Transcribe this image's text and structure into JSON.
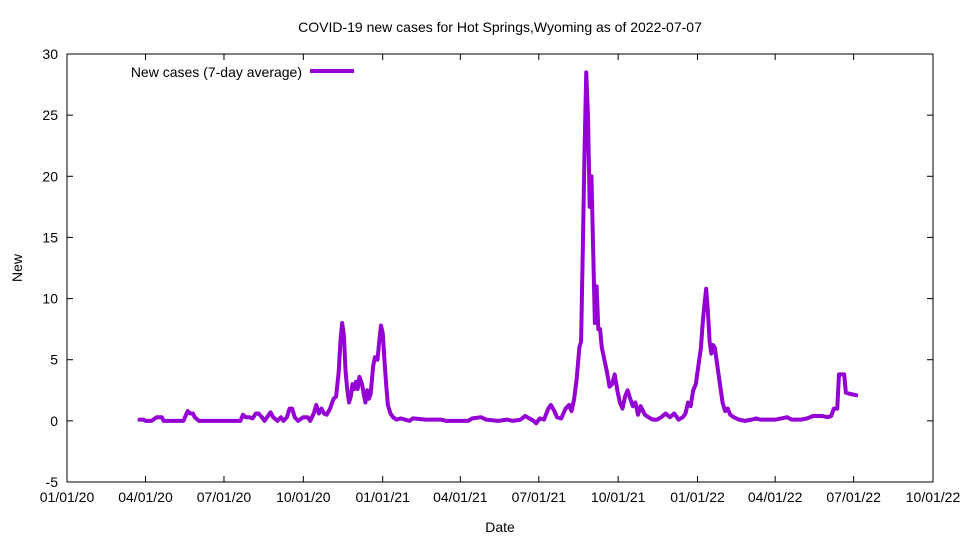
{
  "chart_data": {
    "type": "line",
    "title": "COVID-19 new cases for Hot Springs,Wyoming as of 2022-07-07",
    "xlabel": "Date",
    "ylabel": "New",
    "ylim": [
      -5,
      30
    ],
    "xlim": [
      "2020-01-01",
      "2022-10-01"
    ],
    "yticks": [
      "-5",
      "0",
      "5",
      "10",
      "15",
      "20",
      "25",
      "30"
    ],
    "xticks": [
      {
        "date": "2020-01-01",
        "label": "01/01/20"
      },
      {
        "date": "2020-04-01",
        "label": "04/01/20"
      },
      {
        "date": "2020-07-01",
        "label": "07/01/20"
      },
      {
        "date": "2020-10-01",
        "label": "10/01/20"
      },
      {
        "date": "2021-01-01",
        "label": "01/01/21"
      },
      {
        "date": "2021-04-01",
        "label": "04/01/21"
      },
      {
        "date": "2021-07-01",
        "label": "07/01/21"
      },
      {
        "date": "2021-10-01",
        "label": "10/01/21"
      },
      {
        "date": "2022-01-01",
        "label": "01/01/22"
      },
      {
        "date": "2022-04-01",
        "label": "04/01/22"
      },
      {
        "date": "2022-07-01",
        "label": "07/01/22"
      },
      {
        "date": "2022-10-01",
        "label": "10/01/22"
      }
    ],
    "grid": false,
    "legend_position": "top-left",
    "series": [
      {
        "name": "New cases (7-day average)",
        "color": "#9400d3",
        "points": [
          [
            "2020-03-25",
            0.1
          ],
          [
            "2020-03-30",
            0.1
          ],
          [
            "2020-04-01",
            0.0
          ],
          [
            "2020-04-08",
            0.0
          ],
          [
            "2020-04-10",
            0.1
          ],
          [
            "2020-04-14",
            0.3
          ],
          [
            "2020-04-20",
            0.3
          ],
          [
            "2020-04-22",
            0.0
          ],
          [
            "2020-05-10",
            0.0
          ],
          [
            "2020-05-15",
            0.0
          ],
          [
            "2020-05-18",
            0.5
          ],
          [
            "2020-05-20",
            0.8
          ],
          [
            "2020-05-23",
            0.6
          ],
          [
            "2020-05-26",
            0.6
          ],
          [
            "2020-05-28",
            0.3
          ],
          [
            "2020-06-02",
            0.0
          ],
          [
            "2020-06-20",
            0.0
          ],
          [
            "2020-07-15",
            0.0
          ],
          [
            "2020-07-20",
            0.0
          ],
          [
            "2020-07-23",
            0.5
          ],
          [
            "2020-07-26",
            0.3
          ],
          [
            "2020-07-30",
            0.3
          ],
          [
            "2020-08-03",
            0.2
          ],
          [
            "2020-08-07",
            0.6
          ],
          [
            "2020-08-10",
            0.6
          ],
          [
            "2020-08-14",
            0.3
          ],
          [
            "2020-08-17",
            0.0
          ],
          [
            "2020-08-20",
            0.3
          ],
          [
            "2020-08-24",
            0.7
          ],
          [
            "2020-08-27",
            0.3
          ],
          [
            "2020-09-01",
            0.0
          ],
          [
            "2020-09-05",
            0.3
          ],
          [
            "2020-09-08",
            0.0
          ],
          [
            "2020-09-12",
            0.3
          ],
          [
            "2020-09-15",
            1.0
          ],
          [
            "2020-09-18",
            1.0
          ],
          [
            "2020-09-21",
            0.3
          ],
          [
            "2020-09-25",
            0.0
          ],
          [
            "2020-10-01",
            0.3
          ],
          [
            "2020-10-06",
            0.3
          ],
          [
            "2020-10-09",
            0.0
          ],
          [
            "2020-10-13",
            0.6
          ],
          [
            "2020-10-16",
            1.3
          ],
          [
            "2020-10-19",
            0.6
          ],
          [
            "2020-10-22",
            1.0
          ],
          [
            "2020-10-25",
            0.6
          ],
          [
            "2020-10-28",
            0.5
          ],
          [
            "2020-11-01",
            1.0
          ],
          [
            "2020-11-05",
            1.8
          ],
          [
            "2020-11-08",
            2.0
          ],
          [
            "2020-11-11",
            4.0
          ],
          [
            "2020-11-13",
            6.5
          ],
          [
            "2020-11-15",
            8.0
          ],
          [
            "2020-11-17",
            7.0
          ],
          [
            "2020-11-19",
            4.0
          ],
          [
            "2020-11-21",
            2.5
          ],
          [
            "2020-11-23",
            1.5
          ],
          [
            "2020-11-25",
            2.0
          ],
          [
            "2020-11-27",
            3.0
          ],
          [
            "2020-11-29",
            2.6
          ],
          [
            "2020-12-01",
            3.2
          ],
          [
            "2020-12-03",
            2.6
          ],
          [
            "2020-12-05",
            3.6
          ],
          [
            "2020-12-08",
            3.0
          ],
          [
            "2020-12-10",
            2.2
          ],
          [
            "2020-12-12",
            1.5
          ],
          [
            "2020-12-14",
            2.5
          ],
          [
            "2020-12-16",
            1.8
          ],
          [
            "2020-12-18",
            2.2
          ],
          [
            "2020-12-21",
            4.5
          ],
          [
            "2020-12-23",
            5.2
          ],
          [
            "2020-12-26",
            5.0
          ],
          [
            "2020-12-28",
            6.5
          ],
          [
            "2020-12-30",
            7.8
          ],
          [
            "2021-01-01",
            7.2
          ],
          [
            "2021-01-03",
            5.0
          ],
          [
            "2021-01-05",
            3.0
          ],
          [
            "2021-01-07",
            1.3
          ],
          [
            "2021-01-10",
            0.6
          ],
          [
            "2021-01-13",
            0.3
          ],
          [
            "2021-01-17",
            0.1
          ],
          [
            "2021-01-22",
            0.2
          ],
          [
            "2021-02-01",
            0.0
          ],
          [
            "2021-02-05",
            0.2
          ],
          [
            "2021-02-20",
            0.1
          ],
          [
            "2021-03-10",
            0.1
          ],
          [
            "2021-03-15",
            0.0
          ],
          [
            "2021-04-01",
            0.0
          ],
          [
            "2021-04-10",
            0.0
          ],
          [
            "2021-04-15",
            0.2
          ],
          [
            "2021-04-25",
            0.3
          ],
          [
            "2021-05-01",
            0.1
          ],
          [
            "2021-05-15",
            0.0
          ],
          [
            "2021-05-25",
            0.1
          ],
          [
            "2021-06-01",
            0.0
          ],
          [
            "2021-06-10",
            0.1
          ],
          [
            "2021-06-15",
            0.4
          ],
          [
            "2021-06-20",
            0.2
          ],
          [
            "2021-06-25",
            0.0
          ],
          [
            "2021-06-28",
            -0.2
          ],
          [
            "2021-07-02",
            0.2
          ],
          [
            "2021-07-07",
            0.1
          ],
          [
            "2021-07-12",
            1.0
          ],
          [
            "2021-07-15",
            1.3
          ],
          [
            "2021-07-19",
            0.8
          ],
          [
            "2021-07-22",
            0.3
          ],
          [
            "2021-07-27",
            0.2
          ],
          [
            "2021-08-01",
            1.0
          ],
          [
            "2021-08-05",
            1.3
          ],
          [
            "2021-08-08",
            0.8
          ],
          [
            "2021-08-11",
            1.8
          ],
          [
            "2021-08-14",
            3.5
          ],
          [
            "2021-08-17",
            6.0
          ],
          [
            "2021-08-19",
            6.5
          ],
          [
            "2021-08-21",
            14.0
          ],
          [
            "2021-08-23",
            22.0
          ],
          [
            "2021-08-25",
            28.5
          ],
          [
            "2021-08-27",
            25.0
          ],
          [
            "2021-08-29",
            17.5
          ],
          [
            "2021-08-31",
            20.0
          ],
          [
            "2021-09-02",
            14.0
          ],
          [
            "2021-09-04",
            8.0
          ],
          [
            "2021-09-06",
            11.0
          ],
          [
            "2021-09-08",
            7.5
          ],
          [
            "2021-09-10",
            7.5
          ],
          [
            "2021-09-12",
            6.0
          ],
          [
            "2021-09-15",
            5.0
          ],
          [
            "2021-09-18",
            4.0
          ],
          [
            "2021-09-21",
            2.8
          ],
          [
            "2021-09-24",
            3.0
          ],
          [
            "2021-09-27",
            3.8
          ],
          [
            "2021-09-30",
            2.5
          ],
          [
            "2021-10-03",
            1.5
          ],
          [
            "2021-10-06",
            1.0
          ],
          [
            "2021-10-09",
            2.0
          ],
          [
            "2021-10-12",
            2.5
          ],
          [
            "2021-10-15",
            1.8
          ],
          [
            "2021-10-18",
            1.2
          ],
          [
            "2021-10-21",
            1.5
          ],
          [
            "2021-10-24",
            0.5
          ],
          [
            "2021-10-27",
            1.2
          ],
          [
            "2021-11-01",
            0.5
          ],
          [
            "2021-11-05",
            0.3
          ],
          [
            "2021-11-10",
            0.1
          ],
          [
            "2021-11-15",
            0.1
          ],
          [
            "2021-11-20",
            0.3
          ],
          [
            "2021-11-25",
            0.6
          ],
          [
            "2021-11-30",
            0.3
          ],
          [
            "2021-12-05",
            0.6
          ],
          [
            "2021-12-10",
            0.1
          ],
          [
            "2021-12-15",
            0.3
          ],
          [
            "2021-12-18",
            0.6
          ],
          [
            "2021-12-21",
            1.5
          ],
          [
            "2021-12-24",
            1.2
          ],
          [
            "2021-12-27",
            2.5
          ],
          [
            "2021-12-30",
            3.0
          ],
          [
            "2022-01-02",
            4.5
          ],
          [
            "2022-01-05",
            6.0
          ],
          [
            "2022-01-07",
            8.0
          ],
          [
            "2022-01-09",
            9.5
          ],
          [
            "2022-01-11",
            10.8
          ],
          [
            "2022-01-13",
            9.0
          ],
          [
            "2022-01-15",
            6.5
          ],
          [
            "2022-01-17",
            5.5
          ],
          [
            "2022-01-19",
            6.2
          ],
          [
            "2022-01-21",
            6.0
          ],
          [
            "2022-01-24",
            4.5
          ],
          [
            "2022-01-27",
            3.0
          ],
          [
            "2022-01-30",
            1.5
          ],
          [
            "2022-02-02",
            0.8
          ],
          [
            "2022-02-05",
            1.0
          ],
          [
            "2022-02-08",
            0.5
          ],
          [
            "2022-02-12",
            0.3
          ],
          [
            "2022-02-18",
            0.1
          ],
          [
            "2022-02-25",
            0.0
          ],
          [
            "2022-03-05",
            0.1
          ],
          [
            "2022-03-10",
            0.2
          ],
          [
            "2022-03-15",
            0.1
          ],
          [
            "2022-04-01",
            0.1
          ],
          [
            "2022-04-08",
            0.2
          ],
          [
            "2022-04-15",
            0.3
          ],
          [
            "2022-04-20",
            0.1
          ],
          [
            "2022-05-01",
            0.1
          ],
          [
            "2022-05-08",
            0.2
          ],
          [
            "2022-05-15",
            0.4
          ],
          [
            "2022-05-25",
            0.4
          ],
          [
            "2022-06-01",
            0.3
          ],
          [
            "2022-06-05",
            0.4
          ],
          [
            "2022-06-08",
            1.0
          ],
          [
            "2022-06-12",
            1.0
          ],
          [
            "2022-06-14",
            3.8
          ],
          [
            "2022-06-20",
            3.8
          ],
          [
            "2022-06-22",
            2.3
          ],
          [
            "2022-06-27",
            2.2
          ],
          [
            "2022-07-04",
            2.1
          ]
        ]
      }
    ]
  }
}
